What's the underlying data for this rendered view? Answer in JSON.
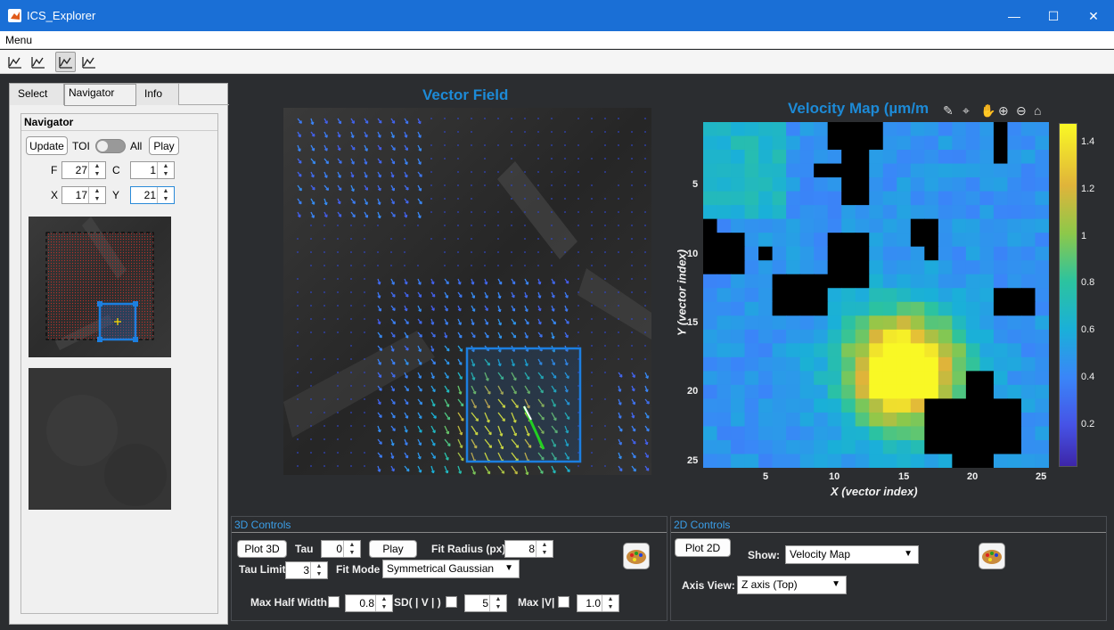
{
  "window": {
    "title": "ICS_Explorer",
    "minimize": "—",
    "maximize": "☐",
    "close": "✕"
  },
  "menu": {
    "label": "Menu"
  },
  "tabs": [
    {
      "label": "Select"
    },
    {
      "label": "Navigator"
    },
    {
      "label": "Info"
    }
  ],
  "navigator": {
    "title": "Navigator",
    "update": "Update",
    "toi": "TOI",
    "all": "All",
    "play": "Play",
    "f_label": "F",
    "f_value": "27",
    "c_label": "C",
    "c_value": "1",
    "x_label": "X",
    "x_value": "17",
    "y_label": "Y",
    "y_value": "21"
  },
  "vector_field": {
    "title": "Vector Field"
  },
  "velocity_map": {
    "title": "Velocity  Map  (µm/m",
    "xlabel": "X (vector index)",
    "ylabel": "Y (vector index)",
    "xticks": [
      "5",
      "10",
      "15",
      "20",
      "25"
    ],
    "yticks": [
      "5",
      "10",
      "15",
      "20",
      "25"
    ],
    "colorbar_ticks": [
      "1.4",
      "1.2",
      "1",
      "0.8",
      "0.6",
      "0.4",
      "0.2"
    ]
  },
  "controls3d": {
    "header": "3D Controls",
    "plot": "Plot 3D",
    "tau_label": "Tau",
    "tau_value": "0",
    "play": "Play",
    "fit_radius_label": "Fit Radius (px)",
    "fit_radius_value": "8",
    "tau_limit_label": "Tau Limit",
    "tau_limit_value": "3",
    "fit_mode_label": "Fit Mode",
    "fit_mode_value": "Symmetrical Gaussian",
    "max_half_width_label": "Max Half Width",
    "max_half_width_value": "0.8",
    "sd_label": "SD( | V | )",
    "sd_value": "5",
    "maxv_label": "Max |V|",
    "maxv_value": "1.0"
  },
  "controls2d": {
    "header": "2D Controls",
    "plot": "Plot 2D",
    "show_label": "Show:",
    "show_value": "Velocity Map",
    "axis_view_label": "Axis View:",
    "axis_view_value": "Z axis (Top)"
  }
}
